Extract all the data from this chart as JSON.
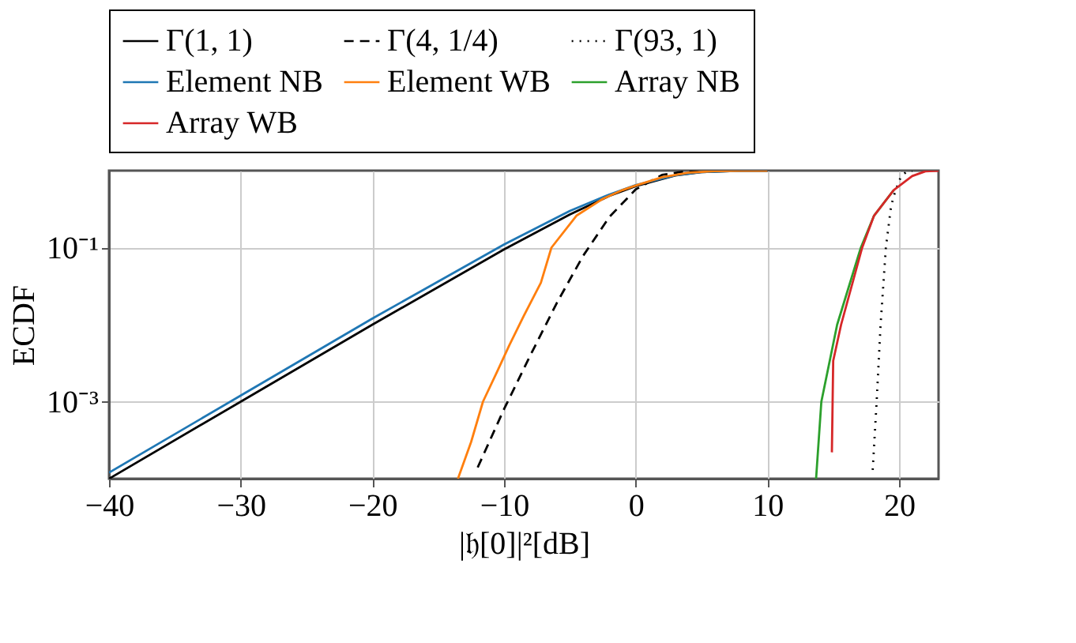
{
  "chart_data": {
    "type": "line",
    "xlabel": "|𝔥[0]|²[dB]",
    "ylabel": "ECDF",
    "xlim": [
      -40,
      23
    ],
    "xticks": [
      -40,
      -30,
      -20,
      -10,
      0,
      10,
      20
    ],
    "ylim": [
      0.0001,
      1
    ],
    "yticks": [
      {
        "value": 0.1,
        "label": "10⁻¹"
      },
      {
        "value": 0.001,
        "label": "10⁻³"
      }
    ],
    "log": "y",
    "grid": true,
    "legend": "top",
    "marker": "none",
    "series": [
      {
        "name": "Γ(1, 1)",
        "color": "#000000",
        "line_style": "solid",
        "x": [
          -40,
          -30,
          -20,
          -10,
          -5,
          -2,
          0,
          3,
          5,
          8,
          10
        ],
        "values": [
          0.0001,
          0.001,
          0.01,
          0.095,
          0.27,
          0.47,
          0.63,
          0.865,
          0.958,
          0.998,
          1.0
        ]
      },
      {
        "name": "Γ(4, 1/4)",
        "color": "#000000",
        "line_style": "dashed",
        "x": [
          -12,
          -10,
          -8,
          -6,
          -4,
          -2,
          0,
          2,
          4,
          6
        ],
        "values": [
          0.00014,
          0.0008,
          0.004,
          0.019,
          0.078,
          0.25,
          0.57,
          0.88,
          0.99,
          1.0
        ]
      },
      {
        "name": "Γ(93, 1)",
        "color": "#000000",
        "line_style": "dotted",
        "x": [
          18.0,
          18.3,
          18.6,
          19.0,
          19.4,
          19.7,
          20.1,
          20.5,
          21
        ],
        "values": [
          0.00013,
          0.001,
          0.01,
          0.1,
          0.35,
          0.53,
          0.8,
          0.95,
          0.995
        ]
      },
      {
        "name": "Element NB",
        "color": "#1f77b4",
        "line_style": "solid",
        "x": [
          -40,
          -30,
          -20,
          -10,
          -5,
          -2,
          0,
          3,
          5,
          8,
          10
        ],
        "values": [
          0.00012,
          0.0012,
          0.012,
          0.11,
          0.3,
          0.49,
          0.65,
          0.87,
          0.96,
          0.998,
          1.0
        ]
      },
      {
        "name": "Element WB",
        "color": "#ff7f0e",
        "line_style": "solid",
        "x": [
          -13.5,
          -12.5,
          -11.6,
          -10.5,
          -9.6,
          -8.5,
          -7.2,
          -6.4,
          -4.5,
          -2.5,
          -1,
          0,
          2,
          4,
          6,
          8,
          10
        ],
        "values": [
          0.0001,
          0.0003,
          0.001,
          0.0025,
          0.0054,
          0.013,
          0.035,
          0.1,
          0.26,
          0.43,
          0.56,
          0.64,
          0.82,
          0.94,
          0.985,
          0.997,
          1.0
        ]
      },
      {
        "name": "Array NB",
        "color": "#2ca02c",
        "line_style": "solid",
        "x": [
          13.7,
          14.1,
          15.3,
          17.1,
          18.1,
          19.6
        ],
        "values": [
          0.0001,
          0.001,
          0.01,
          0.1,
          0.26,
          0.56
        ]
      },
      {
        "name": "Array WB",
        "color": "#d62728",
        "line_style": "solid",
        "x": [
          14.9,
          15.0,
          15.6,
          17.2,
          18.1,
          19.6,
          21,
          22,
          23
        ],
        "values": [
          0.00022,
          0.0034,
          0.01,
          0.1,
          0.26,
          0.56,
          0.85,
          0.98,
          1.0
        ]
      }
    ]
  }
}
